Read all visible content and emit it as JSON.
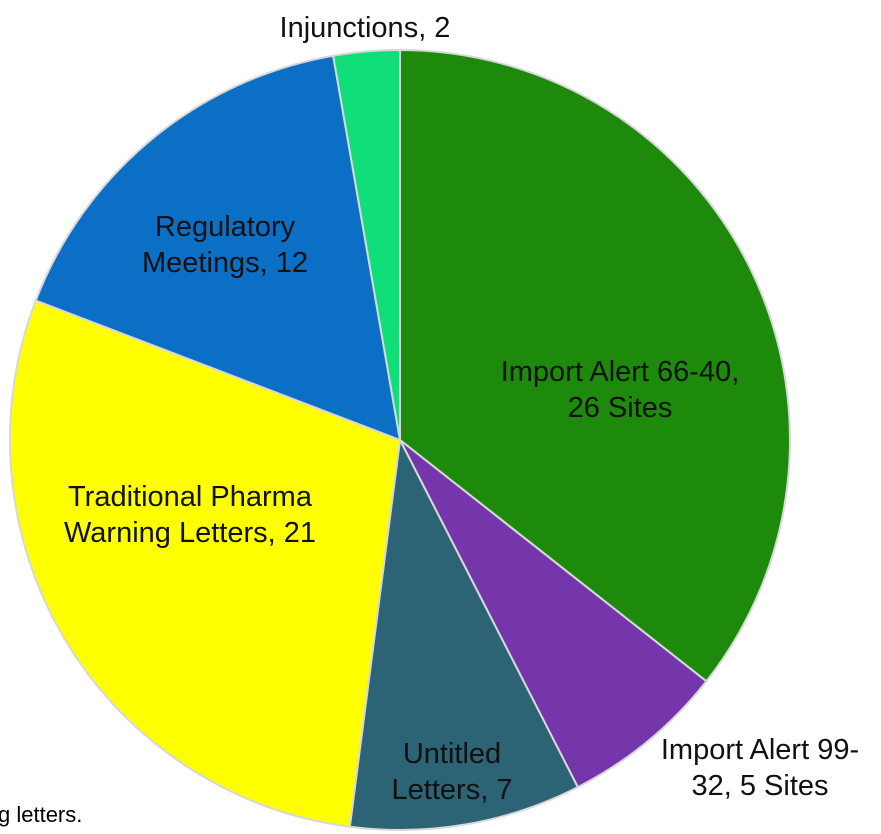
{
  "chart_data": {
    "type": "pie",
    "values": [
      26,
      5,
      7,
      21,
      12,
      2
    ],
    "value_labels": [
      "Import Alert 66-40, 26 Sites",
      "Import Alert 99-32, 5 Sites",
      "Untitled Letters, 7",
      "Traditional Pharma Warning Letters, 21",
      "Regulatory Meetings, 12",
      "Injunctions, 2"
    ],
    "colors": [
      "#1e8a0c",
      "#7535ab",
      "#2c6375",
      "#ffff00",
      "#0c6fc6",
      "#10de78"
    ],
    "footnote": "g letters."
  }
}
